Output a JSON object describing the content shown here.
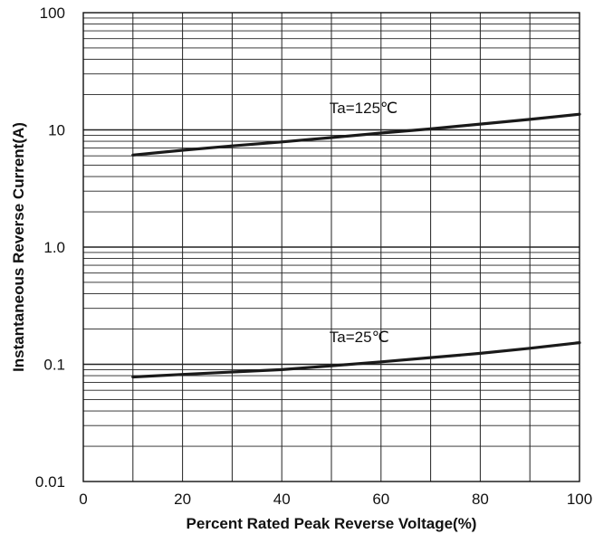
{
  "chart_data": {
    "type": "line",
    "xlabel": "Percent Rated Peak Reverse Voltage(%)",
    "ylabel": "Instantaneous Reverse Current(A)",
    "xlim": [
      0,
      100
    ],
    "ylim": [
      0.01,
      100
    ],
    "yscale": "log",
    "grid": true,
    "x_ticks": [
      0,
      20,
      40,
      60,
      80,
      100
    ],
    "x_tick_labels": [
      "0",
      "20",
      "40",
      "60",
      "80",
      "100"
    ],
    "y_ticks": [
      0.01,
      0.1,
      1,
      10,
      100
    ],
    "y_tick_labels": [
      "0.01",
      "0.1",
      "1.0",
      "10",
      "100"
    ],
    "series": [
      {
        "name": "Ta=125℃",
        "x": [
          10,
          20,
          30,
          40,
          50,
          60,
          70,
          80,
          90,
          100
        ],
        "y": [
          6.1,
          6.7,
          7.3,
          7.9,
          8.6,
          9.4,
          10.2,
          11.2,
          12.3,
          13.6
        ]
      },
      {
        "name": "Ta=25℃",
        "x": [
          10,
          20,
          30,
          40,
          50,
          60,
          70,
          80,
          90,
          100
        ],
        "y": [
          0.078,
          0.082,
          0.086,
          0.09,
          0.097,
          0.105,
          0.114,
          0.124,
          0.137,
          0.153
        ]
      }
    ],
    "colors": {
      "line": "#1a1a1a",
      "grid": "#222222",
      "background": "#ffffff"
    }
  }
}
